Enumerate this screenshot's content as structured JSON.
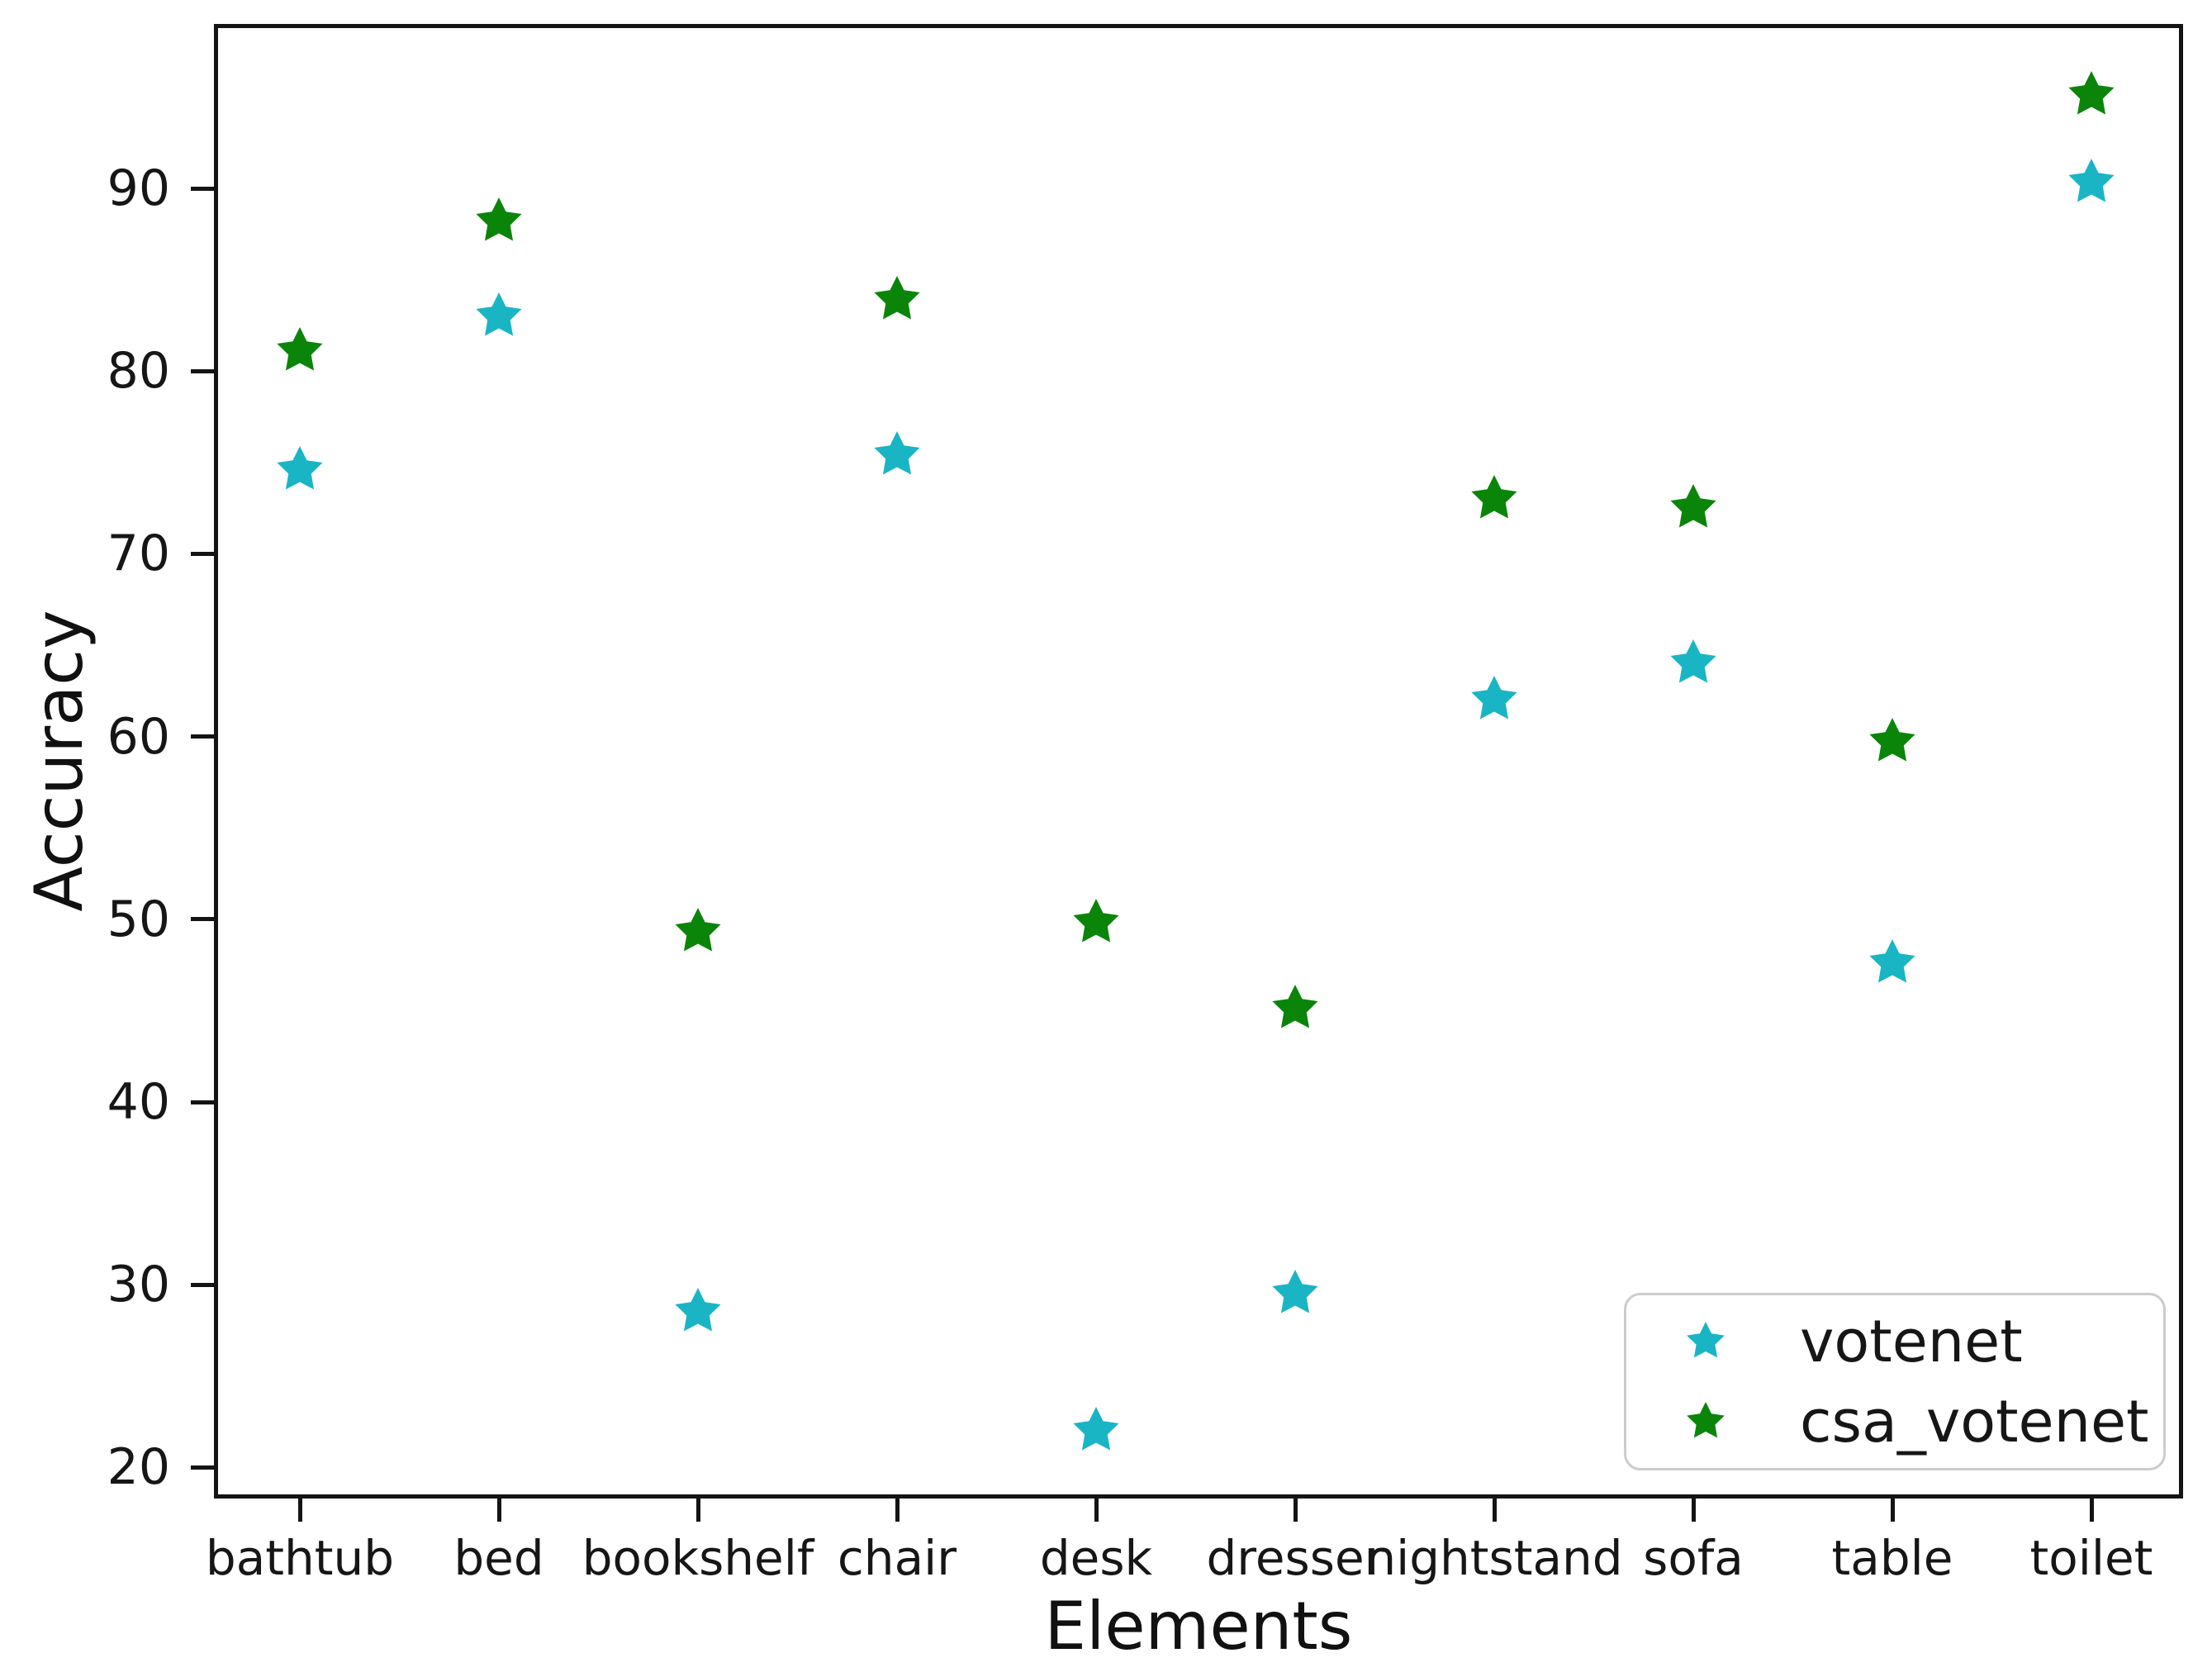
{
  "chart_data": {
    "type": "scatter",
    "title": "",
    "xlabel": "Elements",
    "ylabel": "Accuracy",
    "categories": [
      "bathtub",
      "bed",
      "bookshelf",
      "chair",
      "desk",
      "dresser",
      "nightstand",
      "sofa",
      "table",
      "toilet"
    ],
    "series": [
      {
        "name": "votenet",
        "marker": "star",
        "color": "#1ab5c5",
        "values": [
          74.6,
          83.0,
          28.5,
          75.4,
          22.0,
          29.5,
          62.0,
          64.0,
          47.6,
          90.3
        ]
      },
      {
        "name": "csa_votenet",
        "marker": "star",
        "color": "#0a850a",
        "values": [
          81.1,
          88.2,
          49.3,
          83.9,
          49.8,
          45.1,
          73.0,
          72.5,
          59.7,
          95.1
        ]
      }
    ],
    "yticks": [
      20,
      30,
      40,
      50,
      60,
      70,
      80,
      90
    ],
    "ylim": [
      18.3,
      99.0
    ],
    "grid": false,
    "legend": {
      "position": "lower right",
      "entries": [
        "votenet",
        "csa_votenet"
      ],
      "border_color": "#cccccc"
    }
  }
}
